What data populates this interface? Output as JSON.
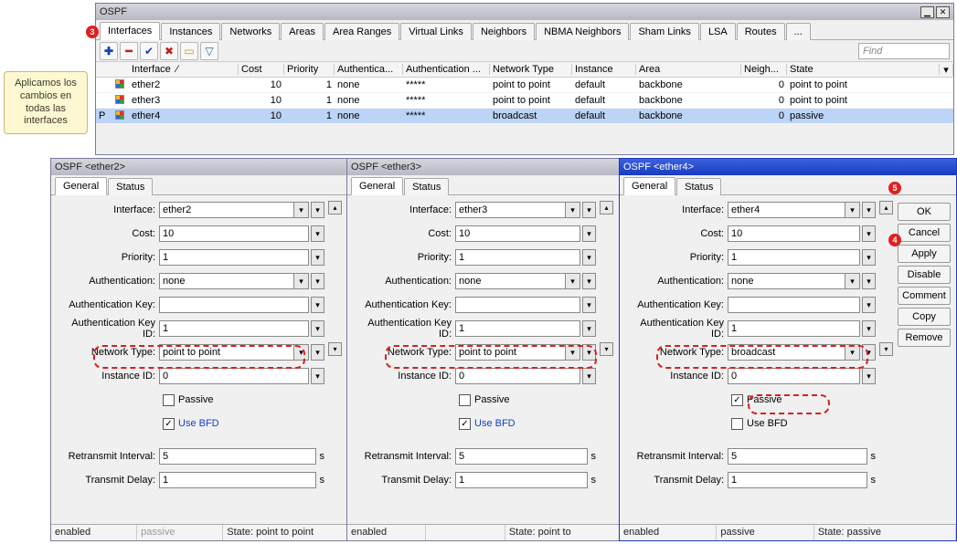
{
  "callout": "Aplicamos los cambios en todas las interfaces",
  "main_win": {
    "title": "OSPF",
    "tabs": [
      "Interfaces",
      "Instances",
      "Networks",
      "Areas",
      "Area Ranges",
      "Virtual Links",
      "Neighbors",
      "NBMA Neighbors",
      "Sham Links",
      "LSA",
      "Routes",
      "..."
    ],
    "active_tab": 0,
    "find": "Find",
    "columns": [
      "",
      "",
      "Interface",
      "Cost",
      "Priority",
      "Authentica...",
      "Authentication ...",
      "Network Type",
      "Instance",
      "Area",
      "Neigh...",
      "State"
    ],
    "rows": [
      {
        "p": "",
        "if": "ether2",
        "cost": "10",
        "pri": "1",
        "auth": "none",
        "key": "*****",
        "nt": "point to point",
        "inst": "default",
        "area": "backbone",
        "neigh": "0",
        "state": "point to point",
        "sel": false
      },
      {
        "p": "",
        "if": "ether3",
        "cost": "10",
        "pri": "1",
        "auth": "none",
        "key": "*****",
        "nt": "point to point",
        "inst": "default",
        "area": "backbone",
        "neigh": "0",
        "state": "point to point",
        "sel": false
      },
      {
        "p": "P",
        "if": "ether4",
        "cost": "10",
        "pri": "1",
        "auth": "none",
        "key": "*****",
        "nt": "broadcast",
        "inst": "default",
        "area": "backbone",
        "neigh": "0",
        "state": "passive",
        "sel": true
      }
    ]
  },
  "detail_wins": [
    {
      "title": "OSPF <ether2>",
      "active": false,
      "interface": "ether2",
      "cost": "10",
      "priority": "1",
      "auth": "none",
      "authkey": "",
      "authkeyid": "1",
      "network": "point to point",
      "instanceid": "0",
      "passive": false,
      "usebfd": true,
      "retransmit": "5",
      "transmitdelay": "1",
      "status1": "enabled",
      "status2": "passive",
      "status2grey": true,
      "status3": "State: point to point"
    },
    {
      "title": "OSPF <ether3>",
      "active": false,
      "interface": "ether3",
      "cost": "10",
      "priority": "1",
      "auth": "none",
      "authkey": "",
      "authkeyid": "1",
      "network": "point to point",
      "instanceid": "0",
      "passive": false,
      "usebfd": true,
      "retransmit": "5",
      "transmitdelay": "1",
      "status1": "enabled",
      "status2": "",
      "status2grey": true,
      "status3": "State: point to"
    },
    {
      "title": "OSPF <ether4>",
      "active": true,
      "interface": "ether4",
      "cost": "10",
      "priority": "1",
      "auth": "none",
      "authkey": "",
      "authkeyid": "1",
      "network": "broadcast",
      "instanceid": "0",
      "passive": true,
      "usebfd": false,
      "retransmit": "5",
      "transmitdelay": "1",
      "status1": "enabled",
      "status2": "passive",
      "status2grey": false,
      "status3": "State: passive"
    }
  ],
  "form_labels": {
    "interface": "Interface:",
    "cost": "Cost:",
    "priority": "Priority:",
    "auth": "Authentication:",
    "authkey": "Authentication Key:",
    "authkeyid": "Authentication Key ID:",
    "network": "Network Type:",
    "instanceid": "Instance ID:",
    "passive": "Passive",
    "usebfd": "Use BFD",
    "retransmit": "Retransmit Interval:",
    "transmitdelay": "Transmit Delay:"
  },
  "detail_tabs": [
    "General",
    "Status"
  ],
  "side_buttons": [
    "OK",
    "Cancel",
    "Apply",
    "Disable",
    "Comment",
    "Copy",
    "Remove"
  ],
  "seconds_suffix": "s"
}
